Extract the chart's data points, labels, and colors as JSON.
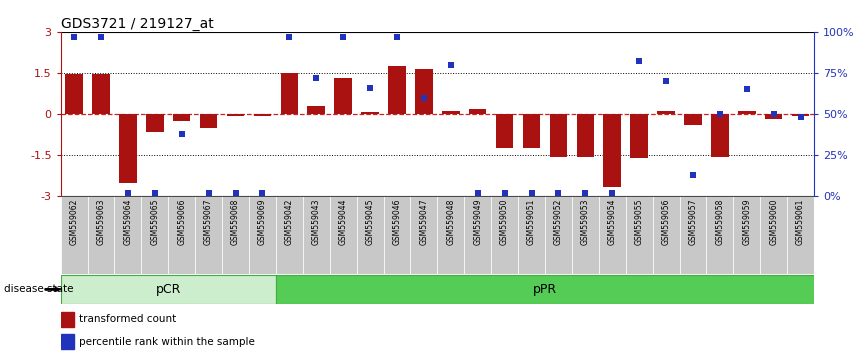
{
  "title": "GDS3721 / 219127_at",
  "samples": [
    "GSM559062",
    "GSM559063",
    "GSM559064",
    "GSM559065",
    "GSM559066",
    "GSM559067",
    "GSM559068",
    "GSM559069",
    "GSM559042",
    "GSM559043",
    "GSM559044",
    "GSM559045",
    "GSM559046",
    "GSM559047",
    "GSM559048",
    "GSM559049",
    "GSM559050",
    "GSM559051",
    "GSM559052",
    "GSM559053",
    "GSM559054",
    "GSM559055",
    "GSM559056",
    "GSM559057",
    "GSM559058",
    "GSM559059",
    "GSM559060",
    "GSM559061"
  ],
  "bar_values": [
    1.45,
    1.45,
    -2.5,
    -0.65,
    -0.25,
    -0.5,
    -0.08,
    -0.05,
    1.5,
    0.28,
    1.3,
    0.08,
    1.75,
    1.65,
    0.1,
    0.18,
    -1.25,
    -1.25,
    -1.55,
    -1.55,
    -2.65,
    -1.6,
    0.1,
    -0.38,
    -1.55,
    0.1,
    -0.18,
    -0.05
  ],
  "percentile_values": [
    97,
    97,
    2,
    2,
    38,
    2,
    2,
    2,
    97,
    72,
    97,
    66,
    97,
    60,
    80,
    2,
    2,
    2,
    2,
    2,
    2,
    82,
    70,
    13,
    50,
    65,
    50,
    48
  ],
  "pcr_count": 8,
  "ppr_count": 20,
  "disease_labels": [
    "pCR",
    "pPR"
  ],
  "ylim": [
    -3,
    3
  ],
  "y2lim": [
    0,
    100
  ],
  "yticks": [
    -3,
    -1.5,
    0,
    1.5,
    3
  ],
  "y2ticks": [
    0,
    25,
    50,
    75,
    100
  ],
  "bar_color": "#AA1111",
  "dot_color": "#2233BB",
  "pcr_bg": "#CCEECC",
  "ppr_bg": "#55CC55",
  "label_bg": "#C8C8C8",
  "border_color": "#000000",
  "hline_color": "#CC2222",
  "title_fontsize": 10
}
